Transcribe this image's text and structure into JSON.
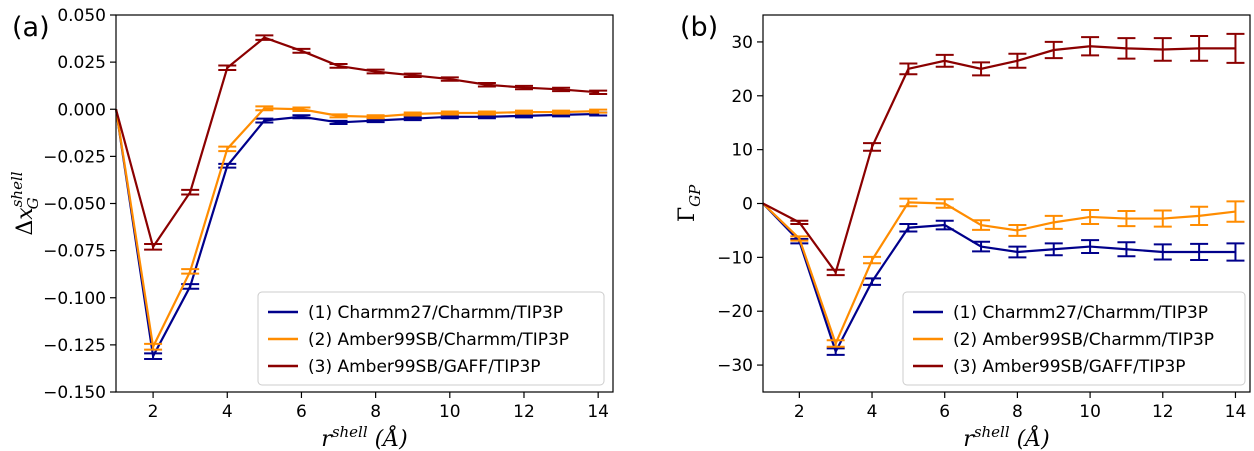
{
  "figure": {
    "colors": {
      "series_1": "#00008b",
      "series_2": "#ff8c00",
      "series_3": "#8b0000"
    },
    "legend_entries": [
      "(1) Charmm27/Charmm/TIP3P",
      "(2) Amber99SB/Charmm/TIP3P",
      "(3) Amber99SB/GAFF/TIP3P"
    ]
  },
  "chart_data": [
    {
      "type": "line",
      "panel_label": "(a)",
      "xlabel": "r^{shell} (Å)",
      "ylabel": "Δx_G^{shell}",
      "xlim": [
        1,
        14.4
      ],
      "ylim": [
        -0.15,
        0.05
      ],
      "xticks": [
        2,
        4,
        6,
        8,
        10,
        12,
        14
      ],
      "xtick_labels": [
        "2",
        "4",
        "6",
        "8",
        "10",
        "12",
        "14"
      ],
      "yticks": [
        -0.15,
        -0.125,
        -0.1,
        -0.075,
        -0.05,
        -0.025,
        0.0,
        0.025,
        0.05
      ],
      "ytick_labels": [
        "−0.150",
        "−0.125",
        "−0.100",
        "−0.075",
        "−0.050",
        "−0.025",
        "0.000",
        "0.025",
        "0.050"
      ],
      "grid": false,
      "legend_position": "lower-right",
      "x": [
        1,
        2,
        3,
        4,
        5,
        6,
        7,
        8,
        9,
        10,
        11,
        12,
        13,
        14
      ],
      "series": [
        {
          "name": "(1) Charmm27/Charmm/TIP3P",
          "color": "#00008b",
          "values": [
            0.0,
            -0.131,
            -0.094,
            -0.03,
            -0.006,
            -0.004,
            -0.007,
            -0.006,
            -0.005,
            -0.004,
            -0.004,
            -0.0035,
            -0.003,
            -0.0025
          ],
          "errors": [
            0.0,
            0.0015,
            0.0012,
            0.001,
            0.001,
            0.0008,
            0.0008,
            0.0008,
            0.0008,
            0.0008,
            0.0008,
            0.0008,
            0.0008,
            0.0008
          ]
        },
        {
          "name": "(2) Amber99SB/Charmm/TIP3P",
          "color": "#ff8c00",
          "values": [
            0.0,
            -0.126,
            -0.086,
            -0.021,
            0.0005,
            0.0,
            -0.0035,
            -0.004,
            -0.0025,
            -0.002,
            -0.002,
            -0.0015,
            -0.0015,
            -0.001
          ],
          "errors": [
            0.0,
            0.0015,
            0.0012,
            0.0012,
            0.001,
            0.0009,
            0.0008,
            0.0008,
            0.0008,
            0.0008,
            0.0008,
            0.0008,
            0.0008,
            0.0008
          ]
        },
        {
          "name": "(3) Amber99SB/GAFF/TIP3P",
          "color": "#8b0000",
          "values": [
            0.0,
            -0.073,
            -0.044,
            0.022,
            0.038,
            0.031,
            0.023,
            0.02,
            0.018,
            0.016,
            0.013,
            0.0115,
            0.0105,
            0.009
          ],
          "errors": [
            0.0,
            0.0015,
            0.0012,
            0.0012,
            0.0012,
            0.001,
            0.001,
            0.001,
            0.0009,
            0.0009,
            0.0009,
            0.0009,
            0.0009,
            0.0009
          ]
        }
      ]
    },
    {
      "type": "line",
      "panel_label": "(b)",
      "xlabel": "r^{shell} (Å)",
      "ylabel": "Γ_{GP}",
      "xlim": [
        1,
        14.4
      ],
      "ylim": [
        -35,
        35
      ],
      "xticks": [
        2,
        4,
        6,
        8,
        10,
        12,
        14
      ],
      "xtick_labels": [
        "2",
        "4",
        "6",
        "8",
        "10",
        "12",
        "14"
      ],
      "yticks": [
        -30,
        -20,
        -10,
        0,
        10,
        20,
        30
      ],
      "ytick_labels": [
        "−30",
        "−20",
        "−10",
        "0",
        "10",
        "20",
        "30"
      ],
      "grid": false,
      "legend_position": "lower-right",
      "x": [
        1,
        2,
        3,
        4,
        5,
        6,
        7,
        8,
        9,
        10,
        11,
        12,
        13,
        14
      ],
      "series": [
        {
          "name": "(1) Charmm27/Charmm/TIP3P",
          "color": "#00008b",
          "values": [
            0,
            -7,
            -27.5,
            -14.5,
            -4.5,
            -4,
            -8,
            -9,
            -8.5,
            -8,
            -8.5,
            -9,
            -9,
            -9
          ],
          "errors": [
            0,
            0.4,
            0.6,
            0.6,
            0.7,
            0.8,
            0.9,
            1.0,
            1.1,
            1.2,
            1.3,
            1.4,
            1.5,
            1.6
          ]
        },
        {
          "name": "(2) Amber99SB/Charmm/TIP3P",
          "color": "#ff8c00",
          "values": [
            0,
            -6.5,
            -26,
            -10.5,
            0.2,
            0,
            -4,
            -5,
            -3.5,
            -2.5,
            -2.8,
            -2.8,
            -2.3,
            -1.5
          ],
          "errors": [
            0,
            0.4,
            0.6,
            0.6,
            0.7,
            0.8,
            0.9,
            1.0,
            1.2,
            1.3,
            1.4,
            1.5,
            1.7,
            1.9
          ]
        },
        {
          "name": "(3) Amber99SB/GAFF/TIP3P",
          "color": "#8b0000",
          "values": [
            0,
            -3.5,
            -12.8,
            10.5,
            25,
            26.5,
            25,
            26.5,
            28.5,
            29.2,
            28.8,
            28.6,
            28.8,
            28.8
          ],
          "errors": [
            0,
            0.3,
            0.5,
            0.7,
            1.0,
            1.1,
            1.2,
            1.3,
            1.5,
            1.7,
            1.9,
            2.1,
            2.3,
            2.7
          ]
        }
      ]
    }
  ]
}
